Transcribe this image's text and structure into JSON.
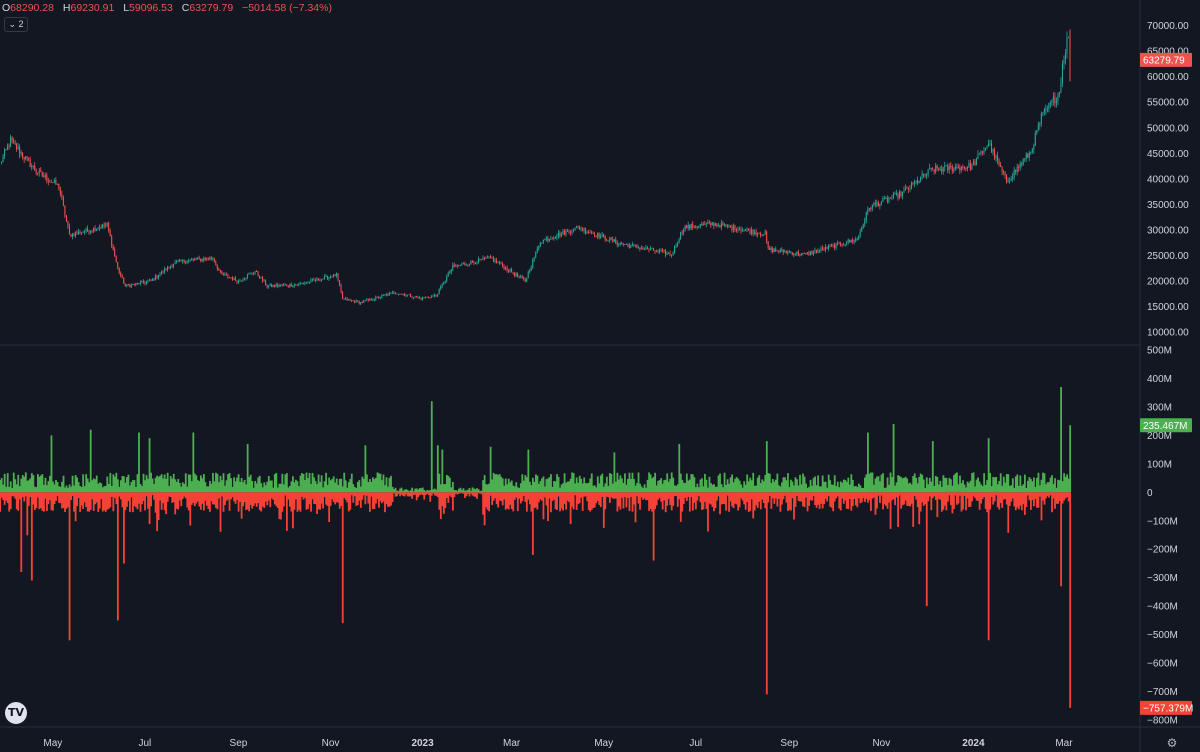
{
  "legend": {
    "o_label": "O",
    "o_value": "68290.28",
    "h_label": "H",
    "h_value": "69230.91",
    "l_label": "L",
    "l_value": "59096.53",
    "c_label": "C",
    "c_value": "63279.79",
    "change": "−5014.58 (−7.34%)"
  },
  "collapse_label": "2",
  "logo_text": "TV",
  "colors": {
    "background": "#131722",
    "up": "#26a69a",
    "down": "#ef5350",
    "inflow": "#4caf50",
    "outflow": "#f44336",
    "text": "#d1d4dc"
  },
  "chart_data": [
    {
      "type": "candlestick",
      "title": "",
      "price_scale_labels": [
        "70000.00",
        "65000.00",
        "60000.00",
        "55000.00",
        "50000.00",
        "45000.00",
        "40000.00",
        "35000.00",
        "30000.00",
        "25000.00",
        "20000.00",
        "15000.00",
        "10000.00"
      ],
      "ylim": [
        7500,
        75000
      ],
      "x_start": "2022-03-27",
      "x_end": "2024-03-05",
      "price_anchors": [
        [
          "2022-03-27",
          43000
        ],
        [
          "2022-04-03",
          47500
        ],
        [
          "2022-04-20",
          41500
        ],
        [
          "2022-05-05",
          38500
        ],
        [
          "2022-05-12",
          29000
        ],
        [
          "2022-05-25",
          30000
        ],
        [
          "2022-06-06",
          31000
        ],
        [
          "2022-06-13",
          22500
        ],
        [
          "2022-06-18",
          19000
        ],
        [
          "2022-07-05",
          20000
        ],
        [
          "2022-07-20",
          23500
        ],
        [
          "2022-07-28",
          24000
        ],
        [
          "2022-08-15",
          24500
        ],
        [
          "2022-08-20",
          21500
        ],
        [
          "2022-09-01",
          20000
        ],
        [
          "2022-09-12",
          22000
        ],
        [
          "2022-09-20",
          19000
        ],
        [
          "2022-10-10",
          19300
        ],
        [
          "2022-11-05",
          21200
        ],
        [
          "2022-11-09",
          16500
        ],
        [
          "2022-11-21",
          15800
        ],
        [
          "2022-12-14",
          17800
        ],
        [
          "2022-12-31",
          16600
        ],
        [
          "2023-01-10",
          17200
        ],
        [
          "2023-01-21",
          22800
        ],
        [
          "2023-02-15",
          24500
        ],
        [
          "2023-03-10",
          20000
        ],
        [
          "2023-03-20",
          27800
        ],
        [
          "2023-04-14",
          30500
        ],
        [
          "2023-05-10",
          27500
        ],
        [
          "2023-06-15",
          25200
        ],
        [
          "2023-06-23",
          30500
        ],
        [
          "2023-07-13",
          31200
        ],
        [
          "2023-08-16",
          29200
        ],
        [
          "2023-08-18",
          26200
        ],
        [
          "2023-09-11",
          25200
        ],
        [
          "2023-10-16",
          28200
        ],
        [
          "2023-10-24",
          34500
        ],
        [
          "2023-11-15",
          37200
        ],
        [
          "2023-12-04",
          41800
        ],
        [
          "2023-12-31",
          42500
        ],
        [
          "2024-01-11",
          47000
        ],
        [
          "2024-01-23",
          39500
        ],
        [
          "2024-02-08",
          45300
        ],
        [
          "2024-02-15",
          52000
        ],
        [
          "2024-02-27",
          57000
        ],
        [
          "2024-02-29",
          62500
        ],
        [
          "2024-03-04",
          68290
        ],
        [
          "2024-03-05",
          63280
        ]
      ],
      "last_price_label": "63279.79",
      "last_price": 63279.79
    },
    {
      "type": "bar",
      "title": "",
      "scale_labels": [
        "500M",
        "400M",
        "300M",
        "200M",
        "100M",
        "0",
        "−100M",
        "−200M",
        "−300M",
        "−400M",
        "−500M",
        "−600M",
        "−700M",
        "−800M"
      ],
      "ylim": [
        -800,
        500
      ],
      "units": "M",
      "inflow_spikes": [
        [
          "2022-04-30",
          200
        ],
        [
          "2022-05-26",
          220
        ],
        [
          "2022-06-27",
          210
        ],
        [
          "2022-07-04",
          190
        ],
        [
          "2022-08-02",
          210
        ],
        [
          "2022-09-07",
          170
        ],
        [
          "2022-11-24",
          165
        ],
        [
          "2023-01-07",
          320
        ],
        [
          "2023-01-11",
          165
        ],
        [
          "2023-01-14",
          150
        ],
        [
          "2023-02-15",
          160
        ],
        [
          "2023-03-12",
          150
        ],
        [
          "2023-05-08",
          140
        ],
        [
          "2023-06-20",
          170
        ],
        [
          "2023-08-17",
          180
        ],
        [
          "2023-10-23",
          210
        ],
        [
          "2023-11-09",
          240
        ],
        [
          "2023-12-05",
          180
        ],
        [
          "2024-01-11",
          190
        ],
        [
          "2024-02-28",
          370
        ],
        [
          "2024-03-05",
          235.467
        ]
      ],
      "outflow_spikes": [
        [
          "2022-04-10",
          -280
        ],
        [
          "2022-04-17",
          -310
        ],
        [
          "2022-05-12",
          -520
        ],
        [
          "2022-06-13",
          -450
        ],
        [
          "2022-06-17",
          -250
        ],
        [
          "2022-11-09",
          -460
        ],
        [
          "2023-03-15",
          -220
        ],
        [
          "2023-06-03",
          -240
        ],
        [
          "2023-08-17",
          -710
        ],
        [
          "2023-12-01",
          -400
        ],
        [
          "2024-01-11",
          -520
        ],
        [
          "2024-02-28",
          -330
        ],
        [
          "2024-03-05",
          -757.379
        ]
      ],
      "last_inflow_label": "235.467M",
      "last_outflow_label": "−757.379M"
    }
  ],
  "x_axis_labels": [
    {
      "date": "2022-05-01",
      "label": "May",
      "bold": false
    },
    {
      "date": "2022-07-01",
      "label": "Jul",
      "bold": false
    },
    {
      "date": "2022-09-01",
      "label": "Sep",
      "bold": false
    },
    {
      "date": "2022-11-01",
      "label": "Nov",
      "bold": false
    },
    {
      "date": "2023-01-01",
      "label": "2023",
      "bold": true
    },
    {
      "date": "2023-03-01",
      "label": "Mar",
      "bold": false
    },
    {
      "date": "2023-05-01",
      "label": "May",
      "bold": false
    },
    {
      "date": "2023-07-01",
      "label": "Jul",
      "bold": false
    },
    {
      "date": "2023-09-01",
      "label": "Sep",
      "bold": false
    },
    {
      "date": "2023-11-01",
      "label": "Nov",
      "bold": false
    },
    {
      "date": "2024-01-01",
      "label": "2024",
      "bold": true
    },
    {
      "date": "2024-03-01",
      "label": "Mar",
      "bold": false
    }
  ]
}
